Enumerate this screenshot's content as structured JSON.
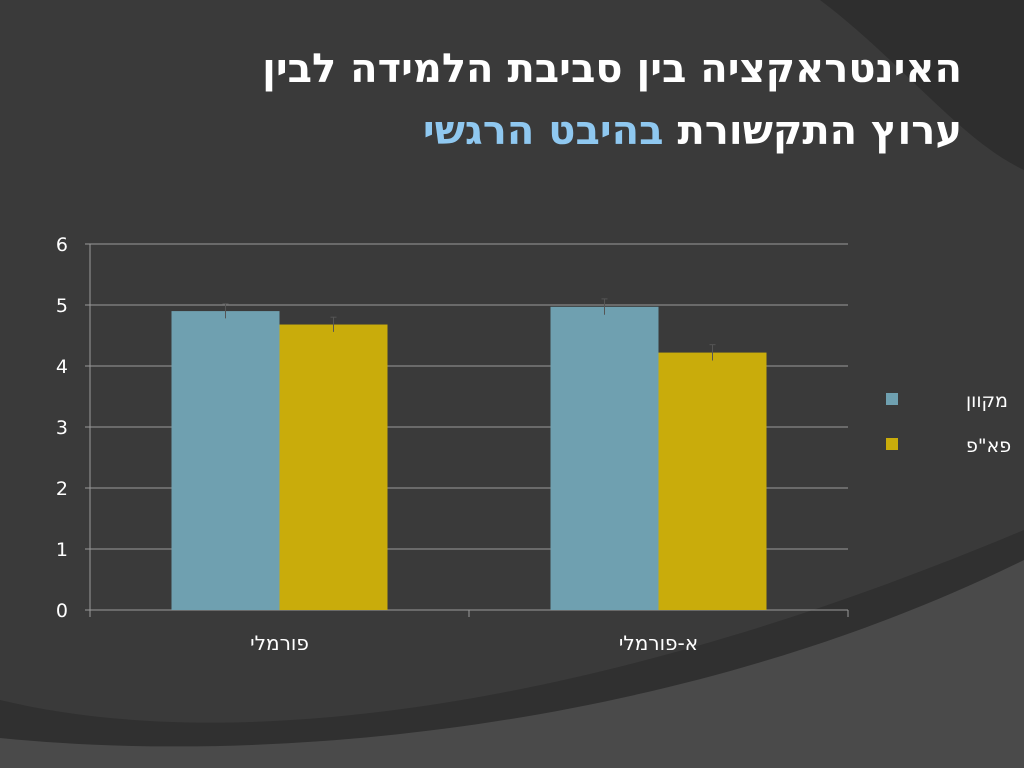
{
  "slide": {
    "title_line1": "האינטראקציה בין סביבת הלמידה לבין",
    "title_line2_plain": "ערוץ התקשורת",
    "title_line2_accent": "בהיבט הרגשי"
  },
  "colors": {
    "background": "#3a3a3a",
    "accent_text": "#8fc8f0",
    "series_online": "#6fa0b0",
    "series_f2f": "#c9ac0b"
  },
  "chart_data": {
    "type": "bar",
    "categories": [
      "פורמלי",
      "א-פורמלי"
    ],
    "series": [
      {
        "name": "מקוון",
        "values": [
          4.9,
          4.97
        ],
        "errors": [
          0.12,
          0.13
        ],
        "color": "#6fa0b0"
      },
      {
        "name": "פא\"פ",
        "values": [
          4.68,
          4.22
        ],
        "errors": [
          0.12,
          0.13
        ],
        "color": "#c9ac0b"
      }
    ],
    "ylim": [
      0,
      6
    ],
    "yticks": [
      0,
      1,
      2,
      3,
      4,
      5,
      6
    ],
    "grid": true,
    "legend": "right",
    "title": "",
    "xlabel": "",
    "ylabel": ""
  }
}
